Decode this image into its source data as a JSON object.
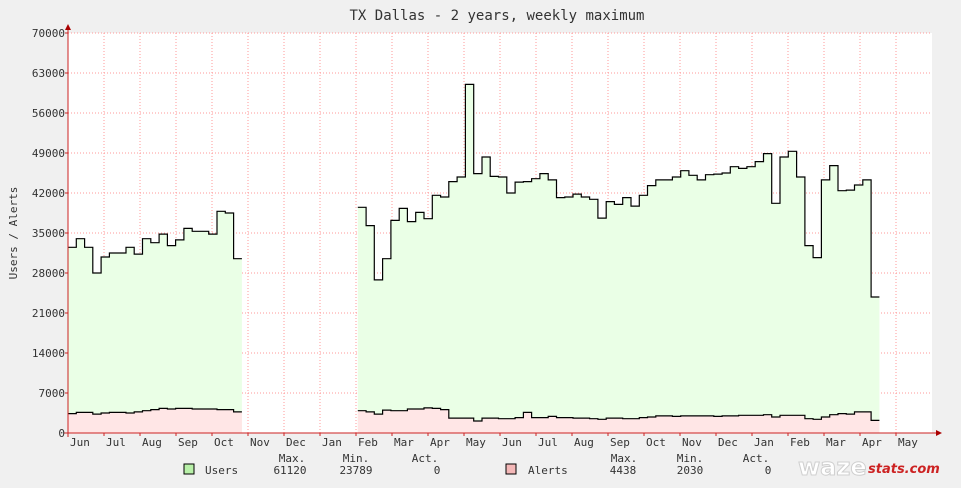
{
  "chart_data": {
    "type": "area",
    "title": "TX Dallas - 2 years, weekly maximum",
    "ylabel": "Users / Alerts",
    "ylim": [
      0,
      70000
    ],
    "yticks": [
      0,
      7000,
      14000,
      21000,
      28000,
      35000,
      42000,
      49000,
      56000,
      63000,
      70000
    ],
    "grid": true,
    "x_ticks": [
      "Jun",
      "Jul",
      "Aug",
      "Sep",
      "Oct",
      "Nov",
      "Dec",
      "Jan",
      "Feb",
      "Mar",
      "Apr",
      "May",
      "Jun",
      "Jul",
      "Aug",
      "Sep",
      "Oct",
      "Nov",
      "Dec",
      "Jan",
      "Feb",
      "Mar",
      "Apr",
      "May"
    ],
    "x_unit": "week",
    "series": [
      {
        "name": "Users",
        "color": "#000000",
        "fill": "#eaffe6",
        "stat_values": [
          "61120",
          "23789",
          "0"
        ],
        "values": [
          32500,
          34000,
          32500,
          28000,
          30800,
          31500,
          31500,
          32500,
          31300,
          34000,
          33300,
          34800,
          32800,
          33800,
          35800,
          35300,
          35300,
          34800,
          38800,
          38500,
          30500,
          null,
          null,
          null,
          null,
          null,
          null,
          null,
          null,
          null,
          null,
          null,
          null,
          null,
          null,
          39500,
          36300,
          26800,
          30500,
          37200,
          39300,
          37000,
          38600,
          37500,
          41600,
          41300,
          44000,
          44800,
          61000,
          45400,
          48300,
          44900,
          44800,
          42000,
          43900,
          44000,
          44500,
          45400,
          44300,
          41200,
          41300,
          41800,
          41300,
          40900,
          37600,
          40500,
          40000,
          41200,
          39700,
          41600,
          43300,
          44300,
          44300,
          44800,
          45900,
          45100,
          44300,
          45200,
          45300,
          45500,
          46600,
          46300,
          46600,
          47500,
          48900,
          40200,
          48300,
          49300,
          44800,
          32800,
          30700,
          44300,
          46800,
          42400,
          42500,
          43400,
          44300,
          23800
        ]
      },
      {
        "name": "Alerts",
        "color": "#000000",
        "fill": "#ffe6e6",
        "stat_values": [
          "4438",
          "2030",
          "0"
        ],
        "values": [
          3400,
          3600,
          3600,
          3300,
          3500,
          3600,
          3600,
          3500,
          3700,
          3900,
          4100,
          4300,
          4200,
          4300,
          4300,
          4200,
          4200,
          4200,
          4100,
          4100,
          3700,
          null,
          null,
          null,
          null,
          null,
          null,
          null,
          null,
          null,
          null,
          null,
          null,
          null,
          null,
          3900,
          3700,
          3300,
          4000,
          3900,
          3900,
          4200,
          4200,
          4400,
          4300,
          4100,
          2600,
          2600,
          2600,
          2100,
          2600,
          2600,
          2500,
          2500,
          2700,
          3600,
          2700,
          2700,
          2900,
          2700,
          2700,
          2600,
          2600,
          2500,
          2400,
          2600,
          2600,
          2500,
          2500,
          2700,
          2800,
          3000,
          3000,
          2900,
          3000,
          3000,
          3000,
          3000,
          2900,
          3000,
          3000,
          3100,
          3100,
          3100,
          3200,
          2800,
          3100,
          3100,
          3100,
          2500,
          2400,
          2800,
          3200,
          3400,
          3300,
          3700,
          3700,
          2200
        ]
      }
    ],
    "legend_headers": [
      "Max.",
      "Min.",
      "Act."
    ]
  },
  "logo": {
    "part1": "waze",
    "part2": "stats.com"
  }
}
